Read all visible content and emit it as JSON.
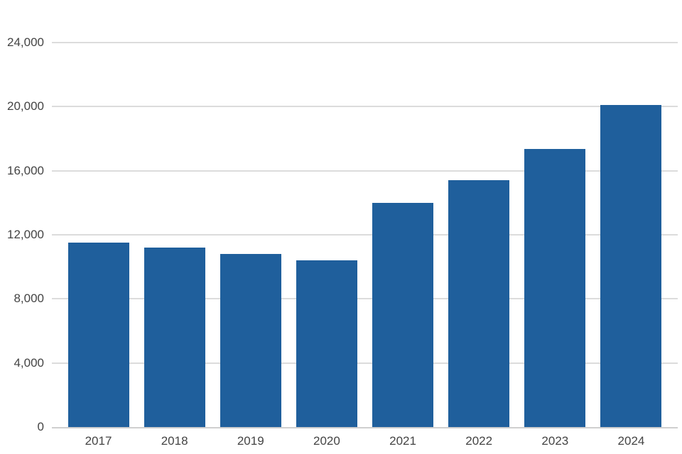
{
  "chart_data": {
    "type": "bar",
    "title": "",
    "xlabel": "",
    "ylabel": "",
    "categories": [
      "2017",
      "2018",
      "2019",
      "2020",
      "2021",
      "2022",
      "2023",
      "2024"
    ],
    "values": [
      11500,
      11200,
      10800,
      10400,
      14000,
      15400,
      17350,
      20100
    ],
    "ylim": [
      0,
      24000
    ],
    "yticks": [
      0,
      4000,
      8000,
      12000,
      16000,
      20000,
      24000
    ],
    "ytick_labels": [
      "0",
      "4,000",
      "8,000",
      "12,000",
      "16,000",
      "20,000",
      "24,000"
    ],
    "grid": true,
    "legend": false,
    "colors": {
      "bar": "#1f5f9c",
      "gridline": "#dcdcdc",
      "axis_line": "#cfcfcf",
      "tick_label": "#444444",
      "background": "#ffffff"
    }
  }
}
